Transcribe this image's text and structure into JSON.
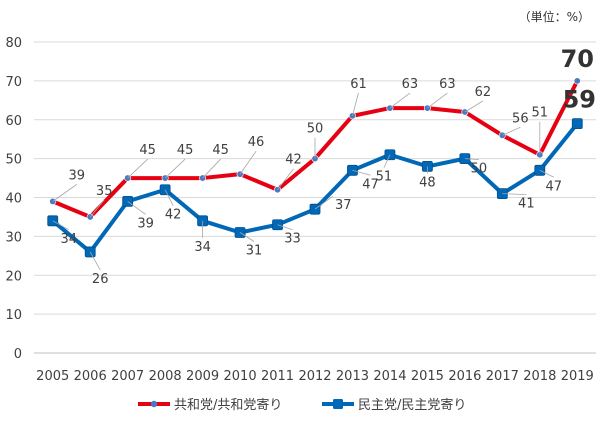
{
  "unit_note": "（単位：%）",
  "chart_data": {
    "type": "line",
    "categories": [
      "2005",
      "2006",
      "2007",
      "2008",
      "2009",
      "2010",
      "2011",
      "2012",
      "2013",
      "2014",
      "2015",
      "2016",
      "2017",
      "2018",
      "2019"
    ],
    "ylim": [
      0,
      80
    ],
    "yticks": [
      0,
      10,
      20,
      30,
      40,
      50,
      60,
      70,
      80
    ],
    "grid": true,
    "legend_position": "bottom",
    "series": [
      {
        "name": "共和党/共和党寄り",
        "color": "#e60012",
        "marker": "circle",
        "values": [
          39,
          35,
          45,
          45,
          45,
          46,
          42,
          50,
          61,
          63,
          63,
          62,
          56,
          51,
          70
        ]
      },
      {
        "name": "民主党/民主党寄り",
        "color": "#0068b7",
        "marker": "square",
        "values": [
          34,
          26,
          39,
          42,
          34,
          31,
          33,
          37,
          47,
          51,
          48,
          50,
          41,
          47,
          59
        ]
      }
    ],
    "data_labels": {
      "rep": [
        "39",
        "35",
        "45",
        "45",
        "45",
        "46",
        "42",
        "50",
        "61",
        "63",
        "63",
        "62",
        "56",
        "51",
        "70"
      ],
      "dem": [
        "34",
        "26",
        "39",
        "42",
        "34",
        "31",
        "33",
        "37",
        "47",
        "51",
        "48",
        "50",
        "41",
        "47",
        "59"
      ]
    }
  }
}
